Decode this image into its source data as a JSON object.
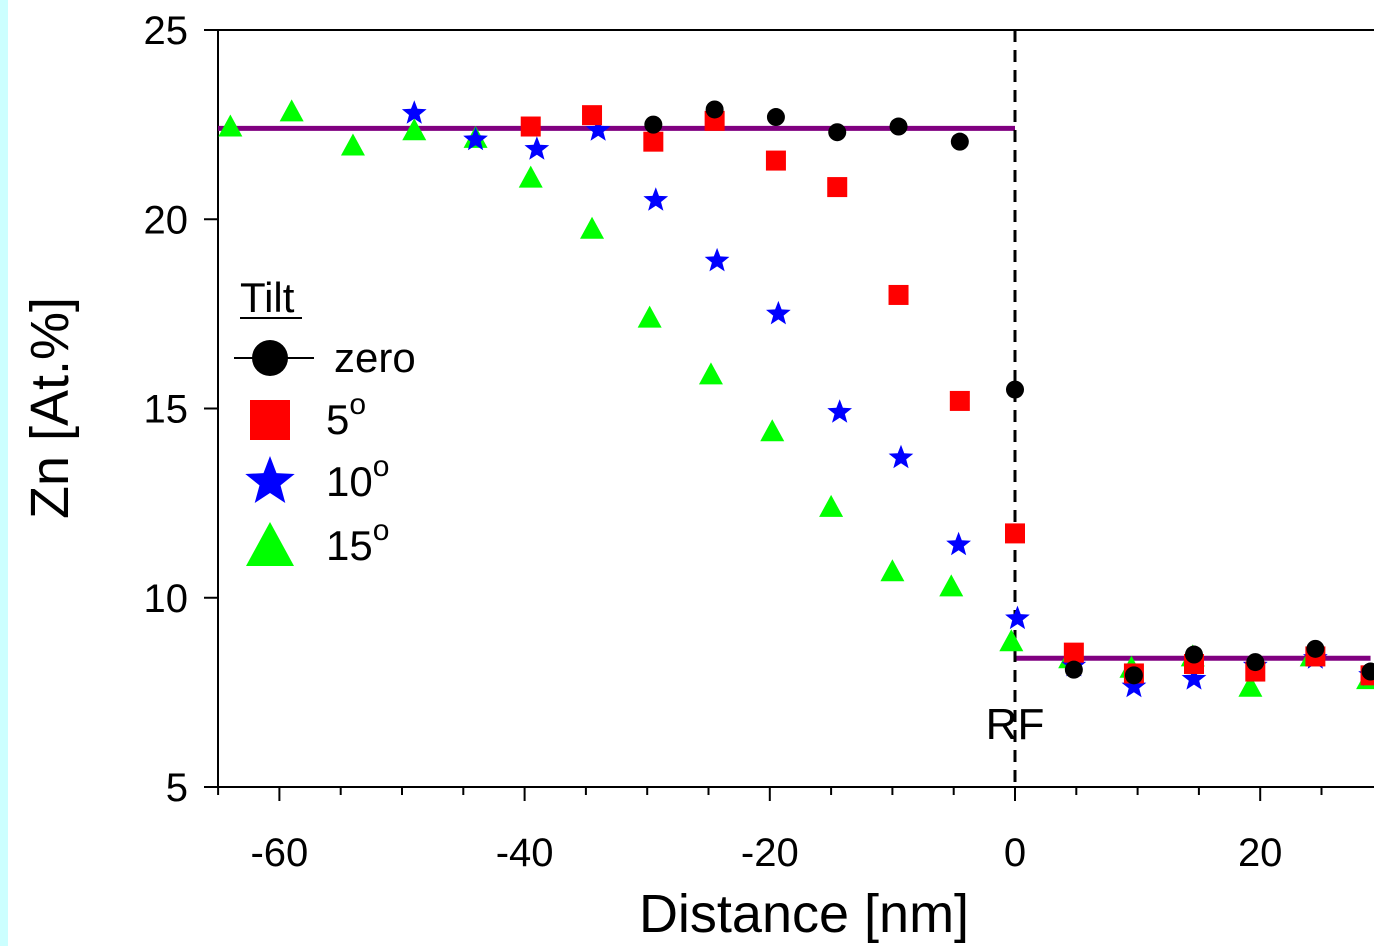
{
  "chart_data": {
    "type": "scatter",
    "xlabel": "Distance [nm]",
    "ylabel": "Zn [At.%]",
    "xlim": [
      -65,
      29
    ],
    "ylim": [
      5,
      25
    ],
    "x_ticks": [
      -60,
      -40,
      -20,
      0,
      20
    ],
    "y_ticks": [
      5,
      10,
      15,
      20,
      25
    ],
    "legend": {
      "title": "Tilt",
      "placement": "left",
      "entries": [
        {
          "label": "zero",
          "superscript": ""
        },
        {
          "label": "5",
          "superscript": "o"
        },
        {
          "label": "10",
          "superscript": "o"
        },
        {
          "label": "15",
          "superscript": "o"
        }
      ]
    },
    "annotation": {
      "text": "RF",
      "x": 0
    },
    "reference_lines": [
      {
        "x": [
          -65,
          0
        ],
        "y": 22.4,
        "color": "#800080"
      },
      {
        "x": [
          0,
          29
        ],
        "y": 8.4,
        "color": "#800080"
      }
    ],
    "series": [
      {
        "marker": "circle",
        "color": "#000000",
        "points": [
          [
            -29.5,
            22.5
          ],
          [
            -24.5,
            22.9
          ],
          [
            -19.5,
            22.7
          ],
          [
            -14.5,
            22.3
          ],
          [
            -9.5,
            22.45
          ],
          [
            -4.5,
            22.05
          ],
          [
            0,
            15.5
          ],
          [
            4.8,
            8.1
          ],
          [
            9.7,
            7.95
          ],
          [
            14.6,
            8.5
          ],
          [
            19.6,
            8.3
          ],
          [
            24.5,
            8.65
          ],
          [
            29,
            8.05
          ]
        ]
      },
      {
        "marker": "square",
        "color": "#ff0000",
        "points": [
          [
            -39.5,
            22.45
          ],
          [
            -34.5,
            22.75
          ],
          [
            -29.5,
            22.05
          ],
          [
            -24.5,
            22.6
          ],
          [
            -19.5,
            21.55
          ],
          [
            -14.5,
            20.85
          ],
          [
            -9.5,
            18.0
          ],
          [
            -4.5,
            15.2
          ],
          [
            0,
            11.7
          ],
          [
            4.8,
            8.55
          ],
          [
            9.7,
            8.0
          ],
          [
            14.6,
            8.25
          ],
          [
            19.6,
            8.05
          ],
          [
            24.5,
            8.45
          ],
          [
            29,
            7.95
          ]
        ]
      },
      {
        "marker": "star",
        "color": "#0000ff",
        "points": [
          [
            -49,
            22.8
          ],
          [
            -44,
            22.1
          ],
          [
            -39,
            21.85
          ],
          [
            -34,
            22.35
          ],
          [
            -29.3,
            20.5
          ],
          [
            -24.3,
            18.9
          ],
          [
            -19.3,
            17.5
          ],
          [
            -14.3,
            14.9
          ],
          [
            -9.3,
            13.7
          ],
          [
            -4.6,
            11.4
          ],
          [
            0.2,
            9.45
          ],
          [
            4.8,
            8.2
          ],
          [
            9.7,
            7.65
          ],
          [
            14.6,
            7.85
          ],
          [
            19.6,
            8.2
          ],
          [
            24.5,
            8.4
          ],
          [
            29,
            7.95
          ]
        ]
      },
      {
        "marker": "triangle",
        "color": "#00ff00",
        "points": [
          [
            -64,
            22.45
          ],
          [
            -59,
            22.85
          ],
          [
            -54,
            21.95
          ],
          [
            -49,
            22.35
          ],
          [
            -44,
            22.15
          ],
          [
            -39.5,
            21.1
          ],
          [
            -34.5,
            19.75
          ],
          [
            -29.8,
            17.4
          ],
          [
            -24.8,
            15.9
          ],
          [
            -19.8,
            14.4
          ],
          [
            -15,
            12.4
          ],
          [
            -10,
            10.7
          ],
          [
            -5.2,
            10.3
          ],
          [
            -0.3,
            8.85
          ],
          [
            4.5,
            8.4
          ],
          [
            9.5,
            8.15
          ],
          [
            14.5,
            8.45
          ],
          [
            19.2,
            7.65
          ],
          [
            24.2,
            8.45
          ],
          [
            28.8,
            7.85
          ]
        ]
      }
    ]
  }
}
